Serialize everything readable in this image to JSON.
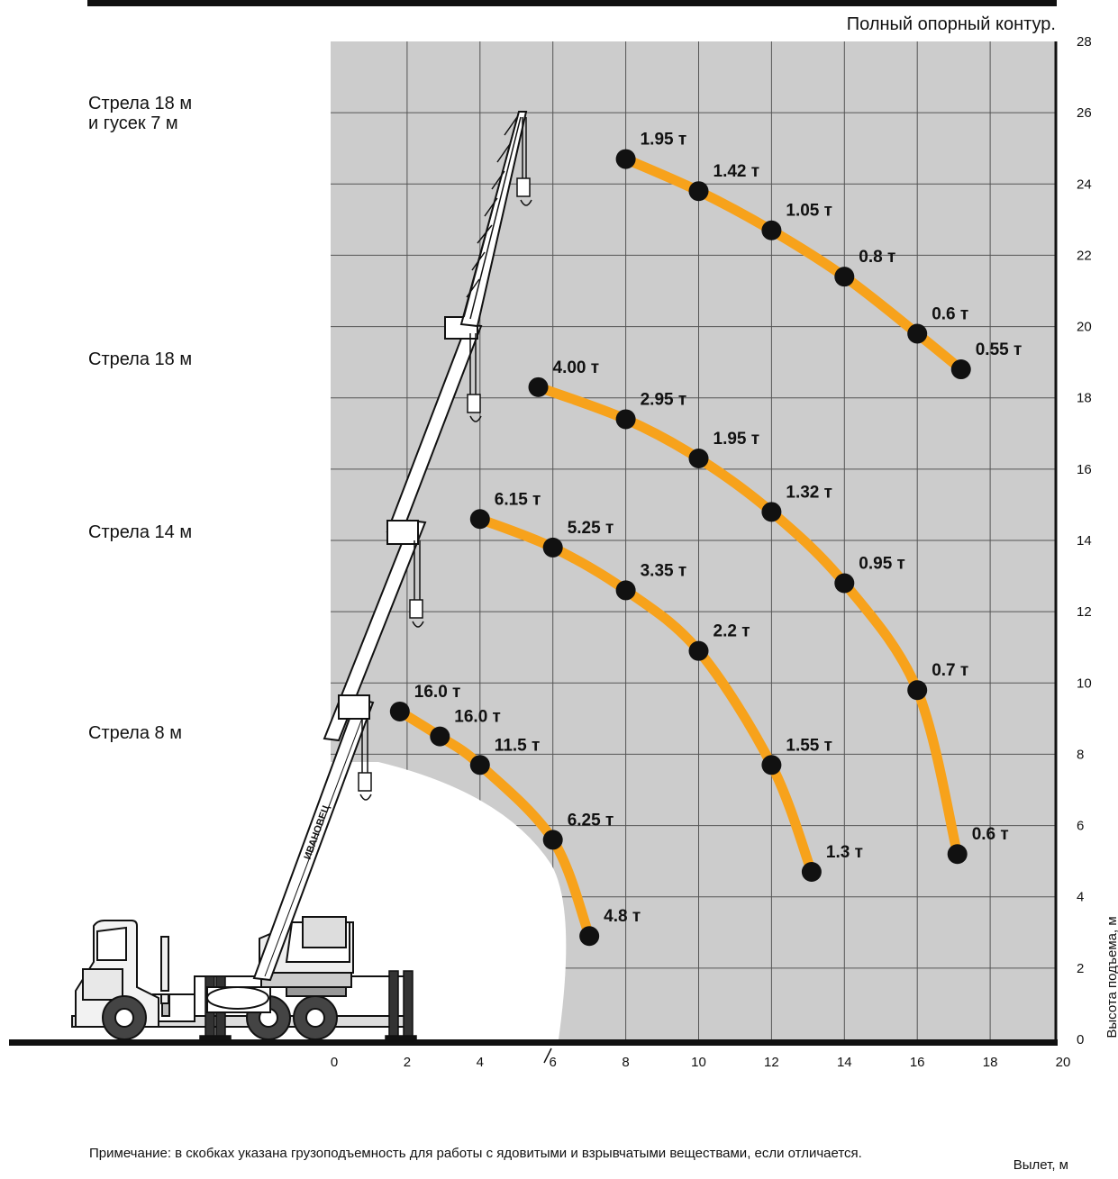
{
  "chart_data": {
    "type": "line",
    "title": "Полный опорный контур.",
    "xlabel": "Вылет, м",
    "ylabel": "Высота подъема, м",
    "xlim": [
      0,
      20
    ],
    "ylim": [
      0,
      28
    ],
    "x_ticks": [
      "0",
      "2",
      "4",
      "6",
      "8",
      "10",
      "12",
      "14",
      "16",
      "18",
      "20"
    ],
    "y_ticks": [
      "0",
      "2",
      "4",
      "6",
      "8",
      "10",
      "12",
      "14",
      "16",
      "18",
      "20",
      "22",
      "24",
      "26",
      "28"
    ],
    "grid": true,
    "curve_color": "#f7a21b",
    "background_color": "#cccccc",
    "boom_labels": [
      {
        "lines": [
          "Стрела 18 м",
          "и гусек 7 м"
        ],
        "y_level": 26
      },
      {
        "lines": [
          "Стрела 18 м"
        ],
        "y_level": 19.6
      },
      {
        "lines": [
          "Стрела 14 м"
        ],
        "y_level": 15.1
      },
      {
        "lines": [
          "Стрела 8 м"
        ],
        "y_level": 10.6
      }
    ],
    "series": [
      {
        "points": [
          {
            "x": 8,
            "y": 24.7,
            "label": "1.95 т"
          },
          {
            "x": 10,
            "y": 23.8,
            "label": "1.42 т"
          },
          {
            "x": 12,
            "y": 22.7,
            "label": "1.05 т"
          },
          {
            "x": 14,
            "y": 21.4,
            "label": "0.8 т"
          },
          {
            "x": 16,
            "y": 19.8,
            "label": "0.6 т"
          },
          {
            "x": 17.2,
            "y": 18.8,
            "label": "0.55 т"
          }
        ]
      },
      {
        "points": [
          {
            "x": 5.6,
            "y": 18.3,
            "label": "4.00 т"
          },
          {
            "x": 8,
            "y": 17.4,
            "label": "2.95 т"
          },
          {
            "x": 10,
            "y": 16.3,
            "label": "1.95 т"
          },
          {
            "x": 12,
            "y": 14.8,
            "label": "1.32 т"
          },
          {
            "x": 14,
            "y": 12.8,
            "label": "0.95 т"
          },
          {
            "x": 16,
            "y": 9.8,
            "label": "0.7 т"
          },
          {
            "x": 17.1,
            "y": 5.2,
            "label": "0.6 т"
          }
        ]
      },
      {
        "points": [
          {
            "x": 4,
            "y": 14.6,
            "label": "6.15 т"
          },
          {
            "x": 6,
            "y": 13.8,
            "label": "5.25 т"
          },
          {
            "x": 8,
            "y": 12.6,
            "label": "3.35 т"
          },
          {
            "x": 10,
            "y": 10.9,
            "label": "2.2 т"
          },
          {
            "x": 12,
            "y": 7.7,
            "label": "1.55 т"
          },
          {
            "x": 13.1,
            "y": 4.7,
            "label": "1.3 т"
          }
        ]
      },
      {
        "points": [
          {
            "x": 1.8,
            "y": 9.2,
            "label": "16.0 т"
          },
          {
            "x": 2.9,
            "y": 8.5,
            "label": "16.0 т"
          },
          {
            "x": 4,
            "y": 7.7,
            "label": "11.5 т"
          },
          {
            "x": 6,
            "y": 5.6,
            "label": "6.25 т"
          },
          {
            "x": 7,
            "y": 2.9,
            "label": "4.8 т"
          }
        ]
      }
    ]
  },
  "note": "Примечание: в скобках указана грузоподъемность для работы с ядовитыми и взрывчатыми веществами, если отличается.",
  "crane_brand": "ИВАНОВЕЦ"
}
